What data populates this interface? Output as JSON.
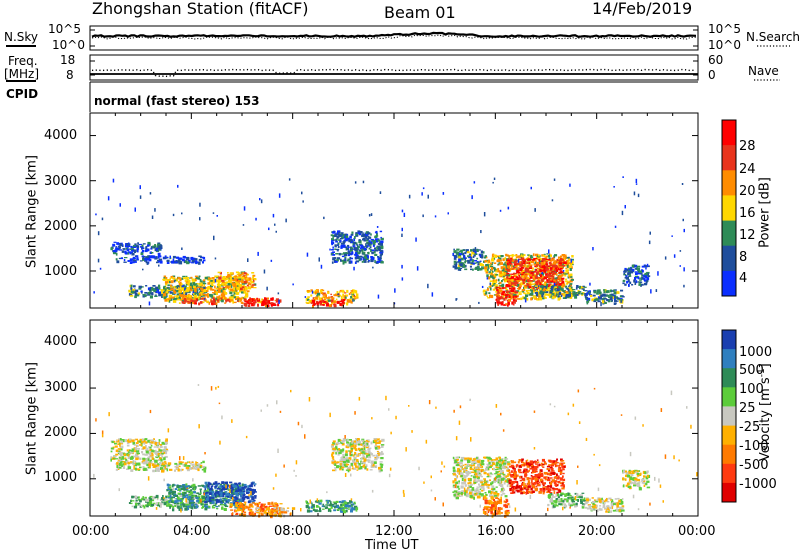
{
  "header": {
    "station": "Zhongshan Station (fitACF)",
    "beam": "Beam 01",
    "date": "14/Feb/2019"
  },
  "status_panels": {
    "nsky_label": "N.Sky",
    "nsky_ticks": [
      "10^5",
      "10^0"
    ],
    "nsearch_label": "N.Search",
    "nsearch_ticks": [
      "10^5",
      "10^0"
    ],
    "freq_label_line1": "Freq.",
    "freq_label_line2": "[MHz]",
    "freq_ticks": [
      "18",
      "8"
    ],
    "nave_label": "Nave",
    "nave_ticks": [
      "60",
      "0"
    ],
    "cpid_label": "CPID",
    "cpid_text": "normal (fast stereo) 153"
  },
  "chart_data": [
    {
      "type": "heatmap",
      "title": "",
      "xlabel": "Time UT",
      "ylabel": "Slant Range [km]",
      "xlim": [
        0,
        24
      ],
      "ylim": [
        180,
        4500
      ],
      "y_ticks": [
        "4000",
        "3000",
        "2000",
        "1000"
      ],
      "x_ticks": [
        "00:00",
        "04:00",
        "08:00",
        "12:00",
        "16:00",
        "20:00",
        "00:00"
      ],
      "colorbar": {
        "label": "Power [dB]",
        "ticks": [
          "28",
          "24",
          "20",
          "16",
          "12",
          "8",
          "4"
        ],
        "colors": [
          "#ff0000",
          "#e8341c",
          "#ff8c00",
          "#ffd700",
          "#2e8b57",
          "#1f4e9c",
          "#0b2fff"
        ]
      },
      "blobs": [
        {
          "t0": 0.8,
          "t1": 2.8,
          "r0": 1400,
          "r1": 1650,
          "v": 8
        },
        {
          "t0": 1.0,
          "t1": 4.5,
          "r0": 1200,
          "r1": 1350,
          "v": 6
        },
        {
          "t0": 1.5,
          "t1": 4.5,
          "r0": 450,
          "r1": 700,
          "v": 10
        },
        {
          "t0": 2.8,
          "t1": 6.2,
          "r0": 350,
          "r1": 900,
          "v": 16
        },
        {
          "t0": 3.5,
          "t1": 7.0,
          "r0": 300,
          "r1": 420,
          "v": 22
        },
        {
          "t0": 5.0,
          "t1": 6.5,
          "r0": 600,
          "r1": 1000,
          "v": 18
        },
        {
          "t0": 6.0,
          "t1": 7.5,
          "r0": 250,
          "r1": 420,
          "v": 26
        },
        {
          "t0": 8.5,
          "t1": 10.5,
          "r0": 300,
          "r1": 600,
          "v": 18
        },
        {
          "t0": 8.7,
          "t1": 10.0,
          "r0": 250,
          "r1": 380,
          "v": 26
        },
        {
          "t0": 9.5,
          "t1": 11.5,
          "r0": 1200,
          "r1": 1900,
          "v": 8
        },
        {
          "t0": 14.3,
          "t1": 15.5,
          "r0": 1050,
          "r1": 1500,
          "v": 10
        },
        {
          "t0": 15.5,
          "t1": 19.0,
          "r0": 400,
          "r1": 1400,
          "v": 16
        },
        {
          "t0": 16.4,
          "t1": 18.7,
          "r0": 650,
          "r1": 1300,
          "v": 24
        },
        {
          "t0": 16.0,
          "t1": 16.8,
          "r0": 250,
          "r1": 650,
          "v": 26
        },
        {
          "t0": 17.5,
          "t1": 19.5,
          "r0": 450,
          "r1": 700,
          "v": 12
        },
        {
          "t0": 19.5,
          "t1": 21.0,
          "r0": 300,
          "r1": 600,
          "v": 10
        },
        {
          "t0": 21.0,
          "t1": 22.0,
          "r0": 700,
          "r1": 1150,
          "v": 8
        }
      ]
    },
    {
      "type": "heatmap",
      "title": "",
      "xlabel": "Time UT",
      "ylabel": "Slant Range [km]",
      "xlim": [
        0,
        24
      ],
      "ylim": [
        180,
        4500
      ],
      "y_ticks": [
        "4000",
        "3000",
        "2000",
        "1000"
      ],
      "x_ticks": [
        "00:00",
        "04:00",
        "08:00",
        "12:00",
        "16:00",
        "20:00",
        "00:00"
      ],
      "colorbar": {
        "label": "Velocity [m s",
        "label_sup": "-1",
        "label_end": "]",
        "ticks": [
          "1000",
          "500",
          "100",
          "25",
          "-25",
          "-100",
          "-500",
          "-1000"
        ],
        "colors": [
          "#1a3fb0",
          "#2f7fbf",
          "#2e8b57",
          "#5ccc3a",
          "#c8c8c0",
          "#ffb000",
          "#ff7a00",
          "#ff3a10",
          "#e00000"
        ]
      },
      "blobs": [
        {
          "t0": 0.8,
          "t1": 3.0,
          "r0": 1400,
          "r1": 1900,
          "v": 4
        },
        {
          "t0": 1.0,
          "t1": 4.5,
          "r0": 1200,
          "r1": 1400,
          "v": 4
        },
        {
          "t0": 1.5,
          "t1": 4.5,
          "r0": 400,
          "r1": 650,
          "v": 3
        },
        {
          "t0": 3.0,
          "t1": 6.0,
          "r0": 350,
          "r1": 900,
          "v": 2
        },
        {
          "t0": 4.5,
          "t1": 6.5,
          "r0": 500,
          "r1": 950,
          "v": 0
        },
        {
          "t0": 5.5,
          "t1": 7.5,
          "r0": 200,
          "r1": 500,
          "v": 6
        },
        {
          "t0": 6.5,
          "t1": 8.0,
          "r0": 200,
          "r1": 380,
          "v": 5
        },
        {
          "t0": 8.5,
          "t1": 10.5,
          "r0": 300,
          "r1": 550,
          "v": 2
        },
        {
          "t0": 9.5,
          "t1": 11.5,
          "r0": 1200,
          "r1": 1900,
          "v": 4
        },
        {
          "t0": 14.3,
          "t1": 16.5,
          "r0": 600,
          "r1": 1500,
          "v": 4
        },
        {
          "t0": 16.5,
          "t1": 18.7,
          "r0": 700,
          "r1": 1450,
          "v": 7
        },
        {
          "t0": 15.5,
          "t1": 16.5,
          "r0": 200,
          "r1": 600,
          "v": 6
        },
        {
          "t0": 18.0,
          "t1": 19.5,
          "r0": 400,
          "r1": 700,
          "v": 3
        },
        {
          "t0": 19.5,
          "t1": 21.0,
          "r0": 300,
          "r1": 600,
          "v": 4
        },
        {
          "t0": 21.0,
          "t1": 22.0,
          "r0": 800,
          "r1": 1200,
          "v": 4
        }
      ]
    }
  ]
}
